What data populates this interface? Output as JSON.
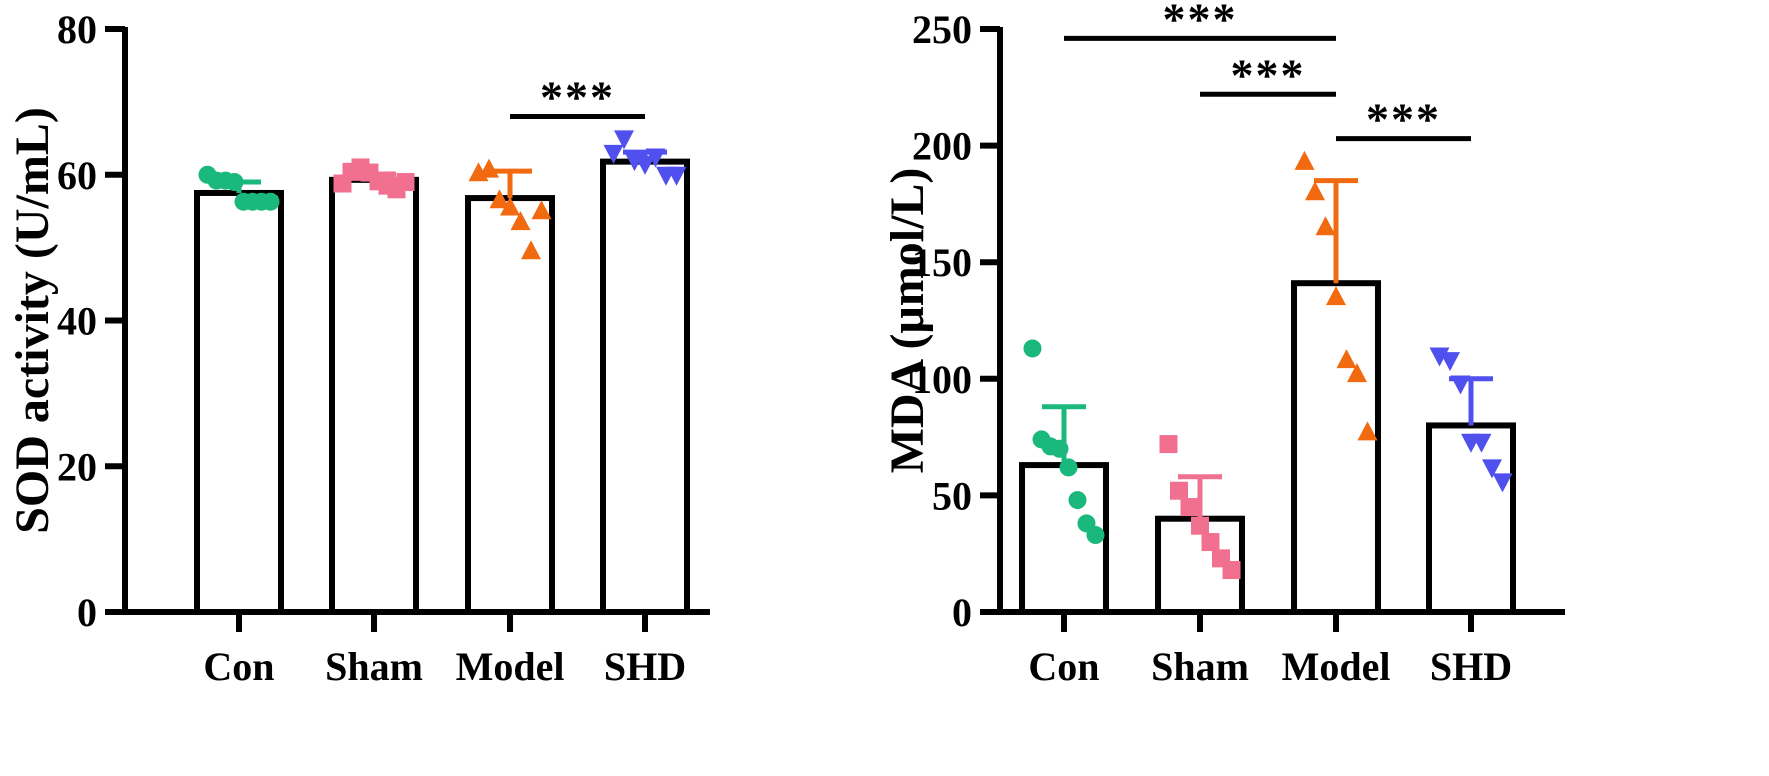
{
  "chart_data": [
    {
      "type": "bar",
      "title": "",
      "xlabel": "",
      "ylabel": "SOD activity (U/mL)",
      "ylim": [
        0,
        80
      ],
      "yticks": [
        0,
        20,
        40,
        60,
        80
      ],
      "ytick_labels": [
        "0",
        "20",
        "40",
        "60",
        "80"
      ],
      "categories": [
        "Con",
        "Sham",
        "Model",
        "SHD"
      ],
      "values": [
        57.5,
        59.3,
        56.8,
        61.8
      ],
      "sd": [
        1.5,
        0.8,
        3.7,
        1.3
      ],
      "points": [
        [
          60.0,
          59.2,
          59.2,
          59.0,
          56.3,
          56.3,
          56.3,
          56.3
        ],
        [
          58.8,
          60.4,
          61.0,
          60.3,
          59.1,
          58.5,
          58.0,
          59.0
        ],
        [
          60.2,
          60.7,
          56.5,
          55.5,
          53.5,
          49.5,
          55.0
        ],
        [
          63.0,
          65.0,
          62.0,
          61.5,
          62.5,
          60.0,
          60.0
        ]
      ],
      "markers": [
        "circle",
        "square",
        "triangle-up",
        "triangle-down"
      ],
      "colors": [
        "#1ab87d",
        "#f2708f",
        "#f26a10",
        "#5050ef"
      ],
      "significance": [
        {
          "from": 2,
          "to": 3,
          "label": "***",
          "y": 68
        }
      ]
    },
    {
      "type": "bar",
      "title": "",
      "xlabel": "",
      "ylabel": "MDA (μmol/L)",
      "ylim": [
        0,
        250
      ],
      "yticks": [
        0,
        50,
        100,
        150,
        200,
        250
      ],
      "ytick_labels": [
        "0",
        "50",
        "100",
        "150",
        "200",
        "250"
      ],
      "categories": [
        "Con",
        "Sham",
        "Model",
        "SHD"
      ],
      "values": [
        63,
        40,
        141,
        80
      ],
      "sd": [
        25,
        18,
        44,
        20
      ],
      "points": [
        [
          113,
          74,
          71,
          70,
          62,
          48,
          38,
          33
        ],
        [
          72,
          52,
          45,
          37,
          30,
          23,
          18
        ],
        [
          193,
          180,
          165,
          135,
          108,
          102,
          77
        ],
        [
          110,
          108,
          98,
          73,
          73,
          62,
          56
        ]
      ],
      "markers": [
        "circle",
        "square",
        "triangle-up",
        "triangle-down"
      ],
      "colors": [
        "#1ab87d",
        "#f2708f",
        "#f26a10",
        "#5050ef"
      ],
      "significance": [
        {
          "from": 0,
          "to": 2,
          "label": "***",
          "y": 246
        },
        {
          "from": 1,
          "to": 2,
          "label": "***",
          "y": 222
        },
        {
          "from": 2,
          "to": 3,
          "label": "***",
          "y": 203
        }
      ]
    }
  ]
}
